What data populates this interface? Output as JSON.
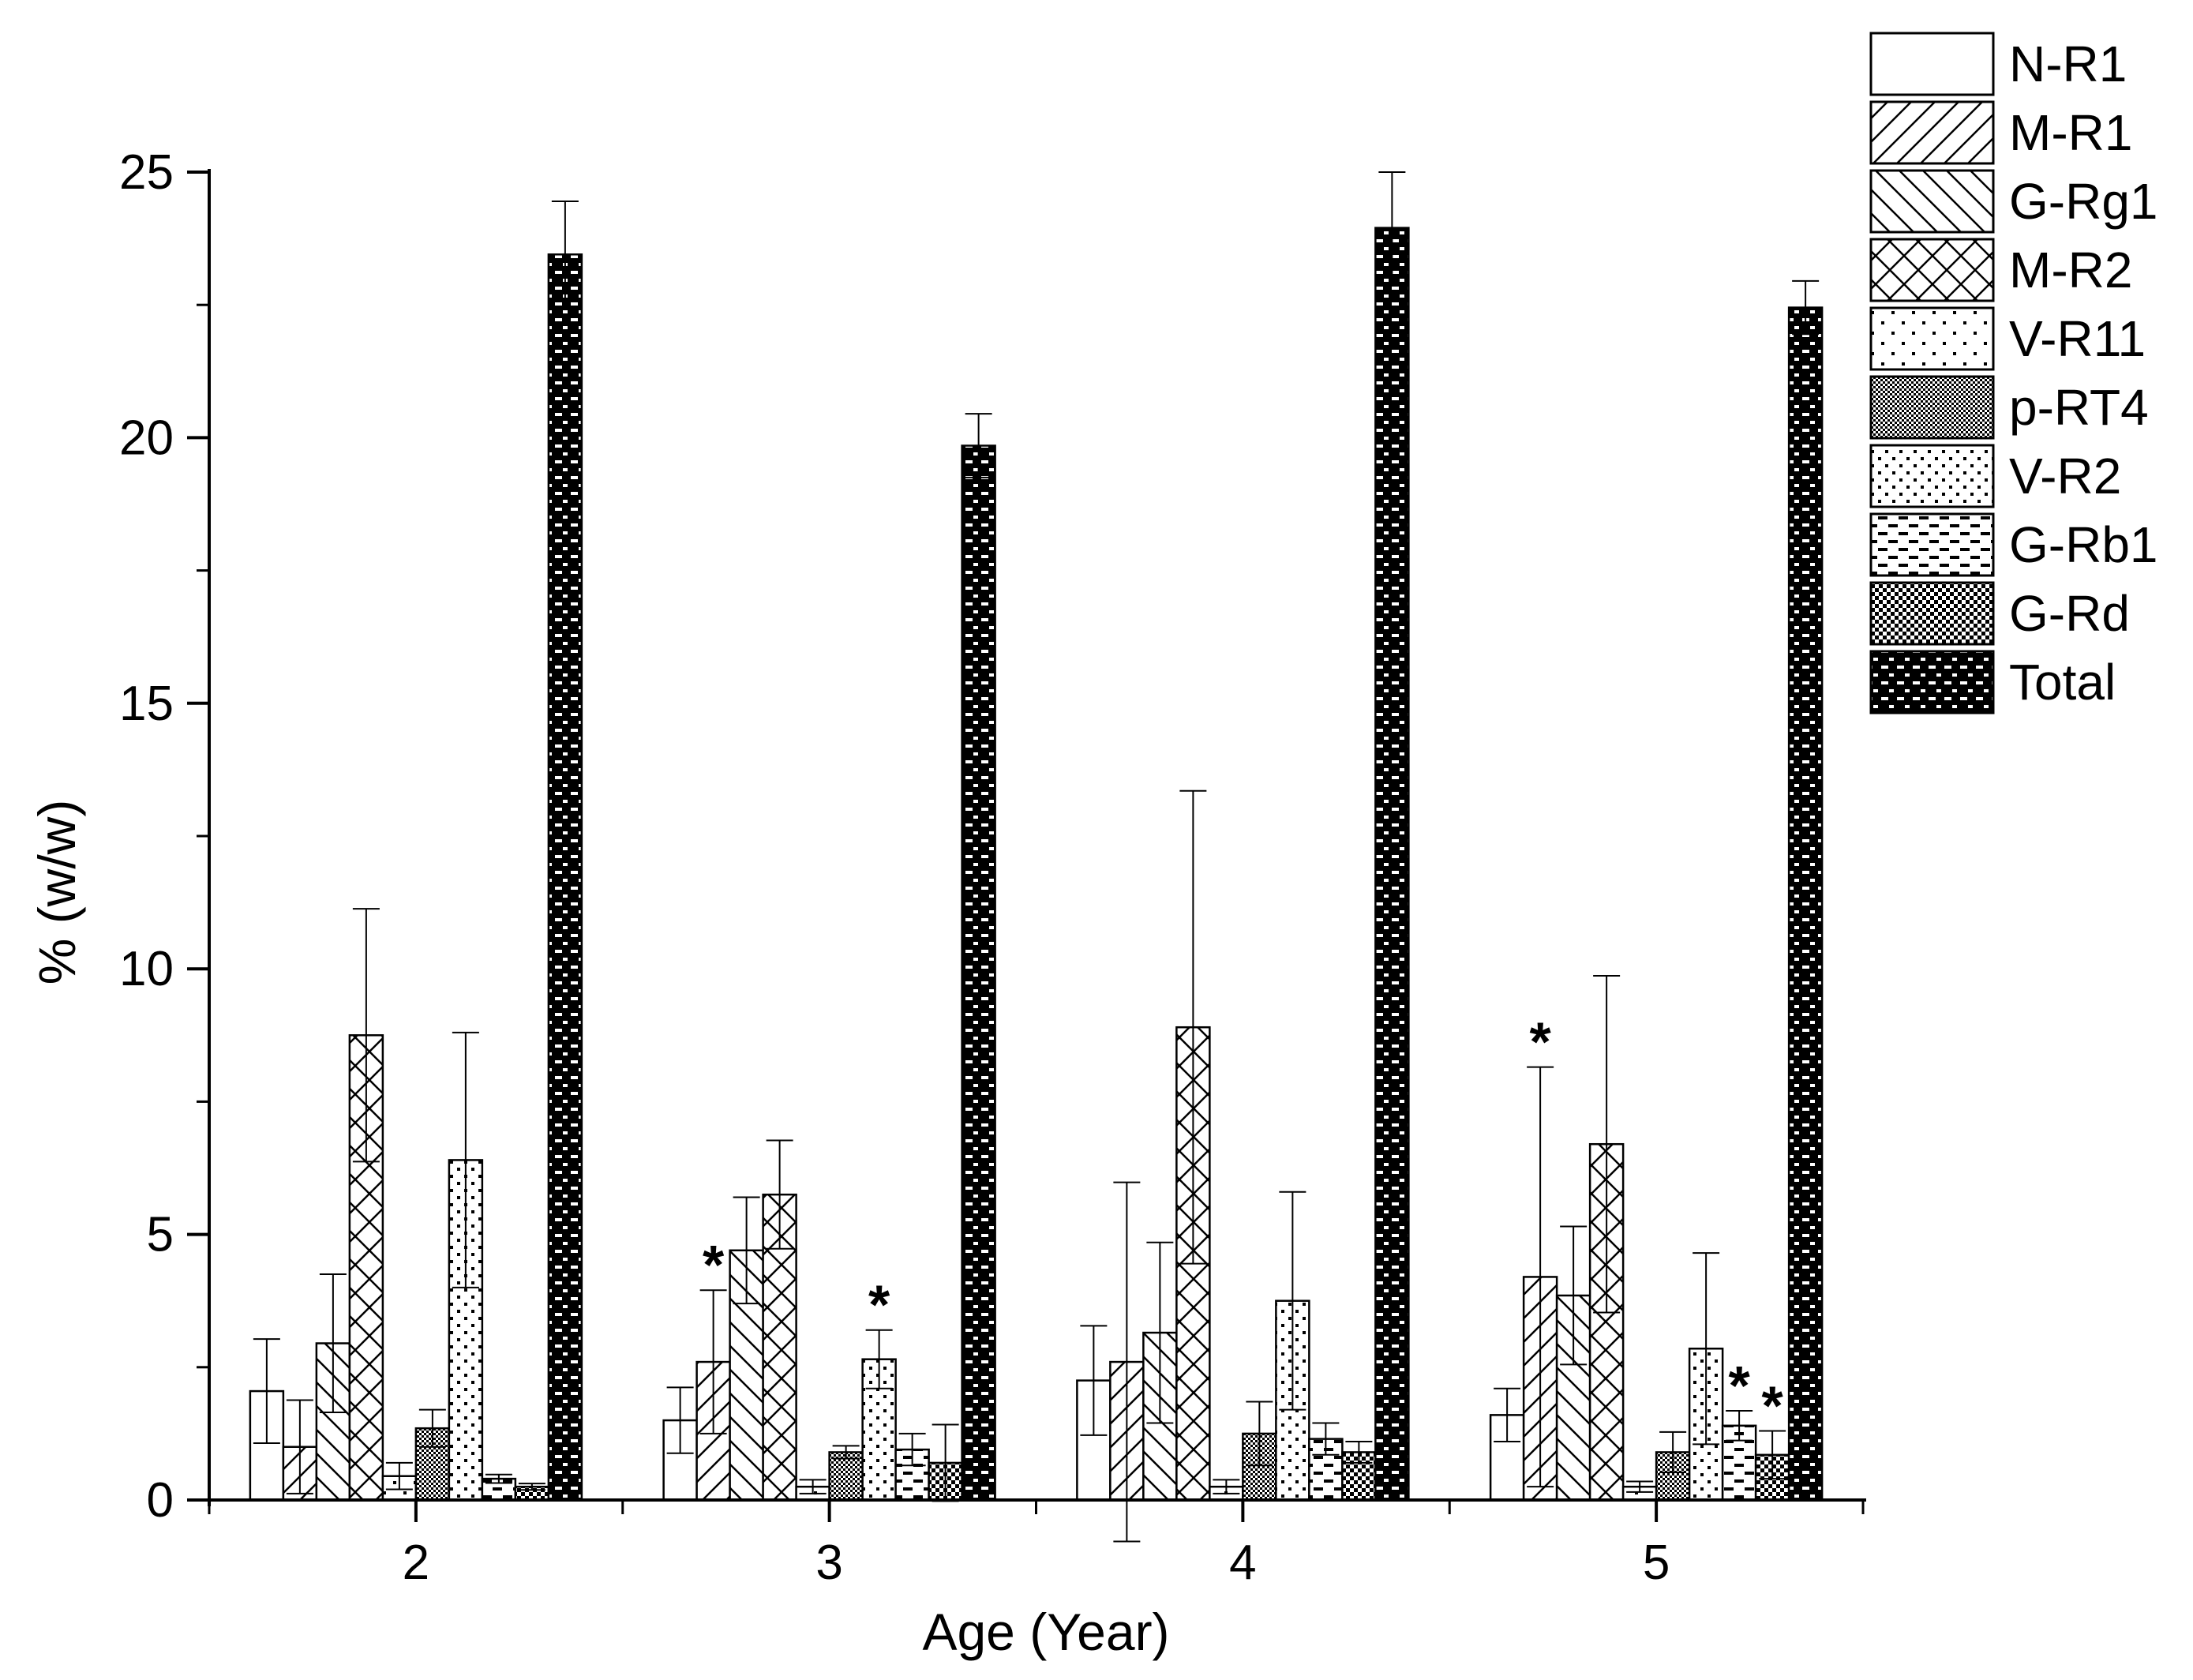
{
  "chart_data": {
    "type": "bar",
    "xlabel": "Age (Year)",
    "ylabel": "% (w/w)",
    "categories": [
      "2",
      "3",
      "4",
      "5"
    ],
    "ylim": [
      0,
      25
    ],
    "yticks": [
      0,
      5,
      10,
      15,
      20,
      25
    ],
    "grid": false,
    "legend_position": "top-right",
    "series": [
      {
        "name": "N-R1",
        "pattern": "empty",
        "values": [
          2.05,
          1.5,
          2.25,
          1.6
        ],
        "errors": [
          0.98,
          0.62,
          1.03,
          0.5
        ]
      },
      {
        "name": "M-R1",
        "pattern": "diag-forward",
        "values": [
          1.0,
          2.6,
          2.6,
          4.2
        ],
        "errors": [
          0.88,
          1.35,
          3.38,
          3.95
        ]
      },
      {
        "name": "G-Rg1",
        "pattern": "diag-back",
        "values": [
          2.95,
          4.7,
          3.15,
          3.85
        ],
        "errors": [
          1.3,
          1.0,
          1.7,
          1.3
        ]
      },
      {
        "name": "M-R2",
        "pattern": "crosshatch",
        "values": [
          8.75,
          5.75,
          8.9,
          6.7
        ],
        "errors": [
          2.38,
          1.02,
          4.45,
          3.17
        ]
      },
      {
        "name": "V-R11",
        "pattern": "dots-sparse",
        "values": [
          0.45,
          0.25,
          0.25,
          0.25
        ],
        "errors": [
          0.25,
          0.13,
          0.13,
          0.1
        ]
      },
      {
        "name": "p-RT4",
        "pattern": "dots-dense",
        "values": [
          1.35,
          0.9,
          1.25,
          0.9
        ],
        "errors": [
          0.35,
          0.12,
          0.6,
          0.38
        ]
      },
      {
        "name": "V-R2",
        "pattern": "dots-medium",
        "values": [
          6.4,
          2.65,
          3.75,
          2.85
        ],
        "errors": [
          2.4,
          0.55,
          2.05,
          1.8
        ]
      },
      {
        "name": "G-Rb1",
        "pattern": "dash-rows",
        "values": [
          0.4,
          0.95,
          1.15,
          1.4
        ],
        "errors": [
          0.08,
          0.3,
          0.3,
          0.28
        ]
      },
      {
        "name": "G-Rd",
        "pattern": "checker",
        "values": [
          0.25,
          0.7,
          0.9,
          0.85
        ],
        "errors": [
          0.06,
          0.72,
          0.2,
          0.45
        ]
      },
      {
        "name": "Total",
        "pattern": "dark-brick",
        "values": [
          23.45,
          19.85,
          23.95,
          22.45
        ],
        "errors": [
          1.0,
          0.6,
          1.05,
          0.5
        ]
      }
    ],
    "annotations": [
      {
        "text": "*",
        "category": "3",
        "series": "M-R1"
      },
      {
        "text": "*",
        "category": "3",
        "series": "V-R2"
      },
      {
        "text": "*",
        "category": "5",
        "series": "M-R1"
      },
      {
        "text": "*",
        "category": "5",
        "series": "G-Rb1"
      },
      {
        "text": "*",
        "category": "5",
        "series": "G-Rd"
      }
    ]
  }
}
